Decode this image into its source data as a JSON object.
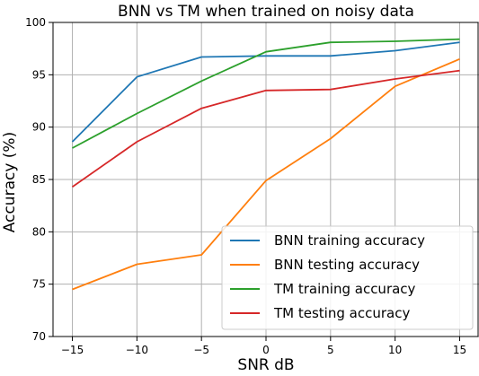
{
  "chart_data": {
    "type": "line",
    "title": "BNN vs TM when trained on noisy data",
    "xlabel": "SNR dB",
    "ylabel": "Accuracy (%)",
    "x": [
      -15,
      -10,
      -5,
      0,
      5,
      10,
      15
    ],
    "xticks": [
      -15,
      -10,
      -5,
      0,
      5,
      10,
      15
    ],
    "yticks": [
      70,
      75,
      80,
      85,
      90,
      95,
      100
    ],
    "xlim": [
      -16.5,
      16.5
    ],
    "ylim": [
      70,
      100
    ],
    "grid": true,
    "legend_position": "lower right",
    "series": [
      {
        "name": "BNN training accuracy",
        "color": "#1f77b4",
        "values": [
          88.6,
          94.8,
          96.7,
          96.8,
          96.8,
          97.3,
          98.1
        ]
      },
      {
        "name": "BNN testing accuracy",
        "color": "#ff7f0e",
        "values": [
          74.5,
          76.9,
          77.8,
          84.9,
          88.9,
          93.9,
          96.5
        ]
      },
      {
        "name": "TM training accuracy",
        "color": "#2ca02c",
        "values": [
          88.0,
          91.3,
          94.4,
          97.2,
          98.1,
          98.2,
          98.4
        ]
      },
      {
        "name": "TM testing accuracy",
        "color": "#d62728",
        "values": [
          84.3,
          88.6,
          91.8,
          93.5,
          93.6,
          94.6,
          95.4
        ]
      }
    ]
  }
}
